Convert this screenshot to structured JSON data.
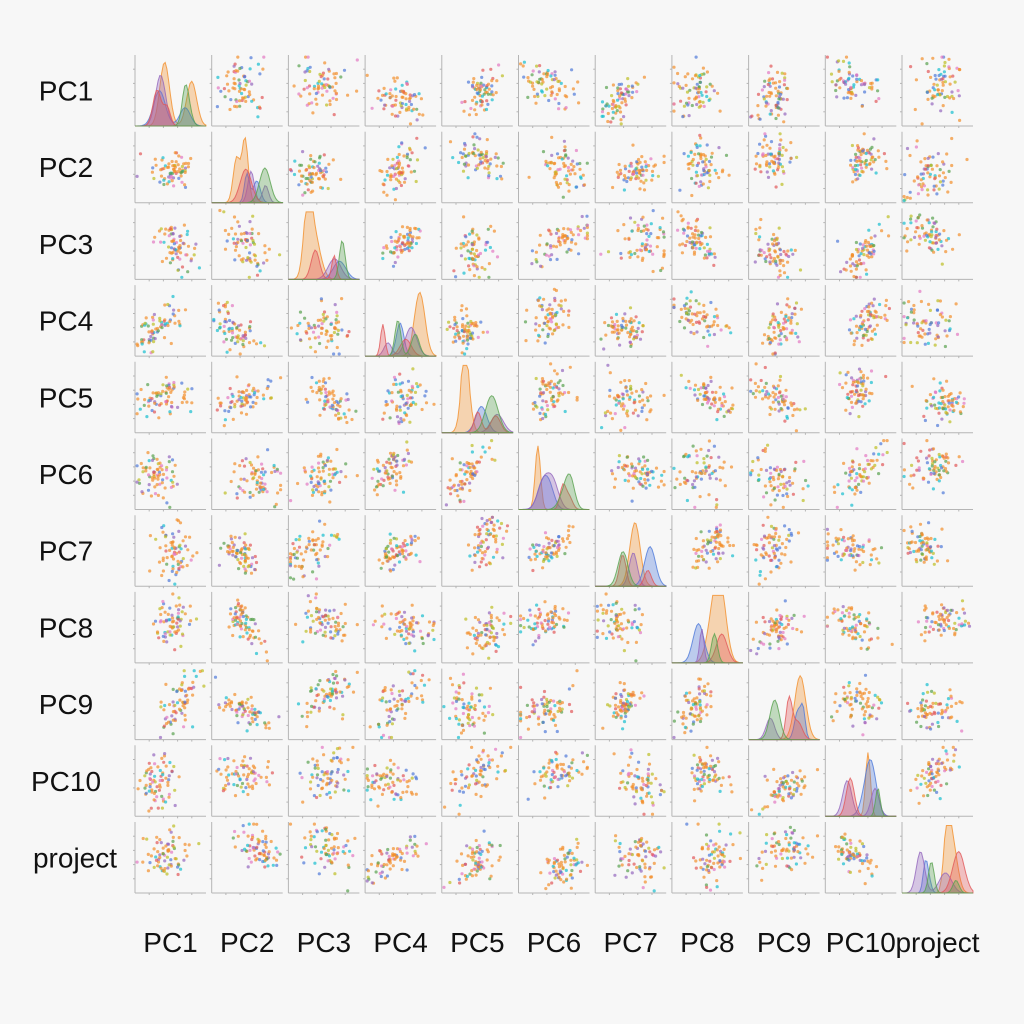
{
  "chart_data": {
    "type": "pairplot",
    "title": "",
    "variables": [
      "PC1",
      "PC2",
      "PC3",
      "PC4",
      "PC5",
      "PC6",
      "PC7",
      "PC8",
      "PC9",
      "PC10",
      "project"
    ],
    "row_labels": [
      "PC1",
      "PC2",
      "PC3",
      "PC4",
      "PC5",
      "PC6",
      "PC7",
      "PC8",
      "PC9",
      "PC10",
      "project"
    ],
    "col_labels": [
      "PC1",
      "PC2",
      "PC3",
      "PC4",
      "PC5",
      "PC6",
      "PC7",
      "PC8",
      "PC9",
      "PC10",
      "project"
    ],
    "diagonal": "kde",
    "off_diagonal": "scatter",
    "tick_labels_shown": false,
    "legend": "none",
    "grid": false,
    "hue_palette": [
      "#f28e2b",
      "#4e79d9",
      "#9467bd",
      "#e15759",
      "#59a14f",
      "#17becf",
      "#e377c2",
      "#bcbd22"
    ],
    "dominant_hue": "#f28e2b",
    "note_values": "Scatter point values are not readable; no axis tick labels are printed."
  }
}
